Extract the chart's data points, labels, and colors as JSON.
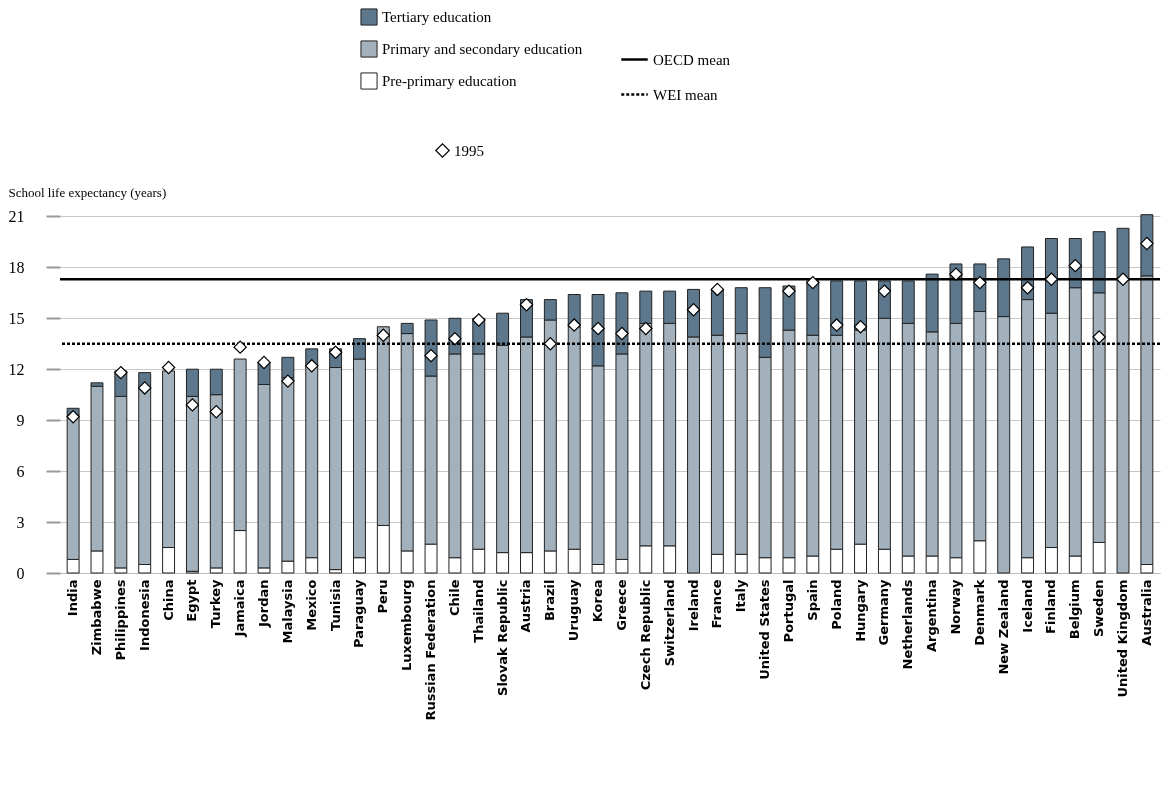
{
  "chart_data": {
    "type": "bar",
    "stacked": true,
    "ylabel": "School life expectancy (years)",
    "categories": [
      "India",
      "Zimbabwe",
      "Philippines",
      "Indonesia",
      "China",
      "Egypt",
      "Turkey",
      "Jamaica",
      "Jordan",
      "Malaysia",
      "Mexico",
      "Tunisia",
      "Paraguay",
      "Peru",
      "Luxembourg",
      "Russian Federation",
      "Chile",
      "Thailand",
      "Slovak Republic",
      "Austria",
      "Brazil",
      "Uruguay",
      "Korea",
      "Greece",
      "Czech Republic",
      "Switzerland",
      "Ireland",
      "France",
      "Italy",
      "United States",
      "Portugal",
      "Spain",
      "Poland",
      "Hungary",
      "Germany",
      "Netherlands",
      "Argentina",
      "Norway",
      "Denmark",
      "New Zealand",
      "Iceland",
      "Finland",
      "Belgium",
      "Sweden",
      "United Kingdom",
      "Australia"
    ],
    "series": [
      {
        "name": "Pre-primary education",
        "color": "#ffffff",
        "values": [
          0.8,
          1.3,
          0.3,
          0.5,
          1.5,
          0.1,
          0.3,
          2.5,
          0.3,
          0.7,
          0.9,
          0.2,
          0.9,
          2.8,
          1.3,
          1.7,
          0.9,
          1.4,
          1.2,
          1.2,
          1.3,
          1.4,
          0.5,
          0.8,
          1.6,
          1.6,
          null,
          1.1,
          1.1,
          0.9,
          0.9,
          1.0,
          1.4,
          1.7,
          1.4,
          1.0,
          1.0,
          0.9,
          1.9,
          null,
          0.9,
          1.5,
          1.0,
          1.8,
          null,
          0.5
        ]
      },
      {
        "name": "Primary and secondary education",
        "color": "#a3b1bc",
        "values": [
          8.5,
          9.7,
          10.1,
          10.4,
          10.4,
          10.3,
          10.2,
          10.1,
          10.8,
          10.8,
          11.3,
          11.9,
          11.7,
          11.7,
          12.8,
          9.9,
          12.0,
          11.5,
          12.2,
          12.7,
          13.6,
          13.1,
          11.7,
          12.1,
          13.1,
          13.1,
          13.9,
          12.9,
          13.0,
          11.8,
          13.4,
          13.0,
          12.6,
          12.6,
          13.6,
          13.7,
          13.2,
          13.8,
          13.5,
          15.1,
          15.2,
          13.8,
          15.8,
          14.7,
          17.3,
          17.0
        ]
      },
      {
        "name": "Tertiary education",
        "color": "#5d788c",
        "values": [
          0.4,
          0.2,
          1.5,
          0.9,
          null,
          1.6,
          1.5,
          null,
          1.3,
          1.2,
          1.0,
          1.1,
          1.2,
          null,
          0.6,
          3.3,
          2.1,
          2.1,
          1.9,
          2.2,
          1.2,
          1.9,
          4.2,
          3.6,
          1.9,
          1.9,
          2.8,
          2.7,
          2.7,
          4.1,
          2.6,
          3.2,
          3.2,
          2.9,
          2.2,
          2.5,
          3.4,
          3.5,
          2.8,
          3.4,
          3.1,
          4.4,
          2.9,
          3.6,
          3.0,
          3.6
        ]
      },
      {
        "name": "1995",
        "type": "scatter",
        "marker": "diamond",
        "color": "#ffffff",
        "values": [
          9.2,
          null,
          11.8,
          10.9,
          12.1,
          9.9,
          9.5,
          13.3,
          12.4,
          11.3,
          12.2,
          13.0,
          null,
          14.0,
          null,
          12.8,
          13.8,
          14.9,
          null,
          15.8,
          13.5,
          14.6,
          14.4,
          14.1,
          14.4,
          null,
          15.5,
          16.7,
          null,
          null,
          16.6,
          17.1,
          14.6,
          14.5,
          16.6,
          null,
          null,
          17.6,
          17.1,
          null,
          16.8,
          17.3,
          18.1,
          13.9,
          17.3,
          19.4
        ]
      }
    ],
    "ylim": [
      0,
      21.2
    ],
    "yticks": [
      0,
      3,
      6,
      9,
      12,
      15,
      18,
      21
    ],
    "grid": "y",
    "legend": "top",
    "ref_lines": [
      {
        "axis": "y",
        "value": 17.3,
        "label": "OECD mean",
        "color": "#000000",
        "line_style": "solid"
      },
      {
        "axis": "y",
        "value": 13.5,
        "label": "WEI mean",
        "color": "#000000",
        "line_style": "dotted"
      }
    ]
  }
}
